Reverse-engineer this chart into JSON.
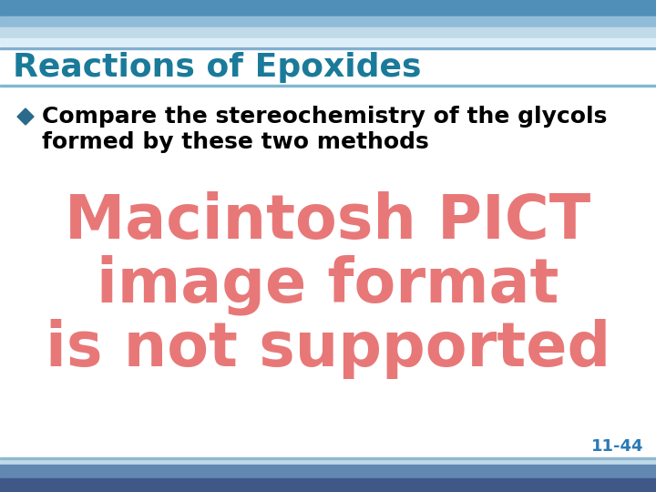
{
  "title": "Reactions of Epoxides",
  "title_color": "#1a7a9a",
  "title_fontsize": 26,
  "bullet_text_line1": "Compare the stereochemistry of the glycols",
  "bullet_text_line2": "formed by these two methods",
  "bullet_color": "#2a6a8a",
  "text_color": "#000000",
  "text_fontsize": 18,
  "pict_line1": "Macintosh PICT",
  "pict_line2": "image format",
  "pict_line3": "is not supported",
  "pict_color": "#e87878",
  "pict_fontsize": 48,
  "slide_number": "11-44",
  "slide_number_color": "#2a7ab5",
  "slide_number_fontsize": 13,
  "bg_color": "#ffffff",
  "top_bar_height": 18,
  "bottom_bar_height": 18,
  "header_stripe_color": "#c8dff0",
  "header_dark_color": "#7aadcc",
  "footer_dark_color": "#3a5080",
  "footer_mid_color": "#6090b8",
  "footer_light_color": "#a0c4dd"
}
